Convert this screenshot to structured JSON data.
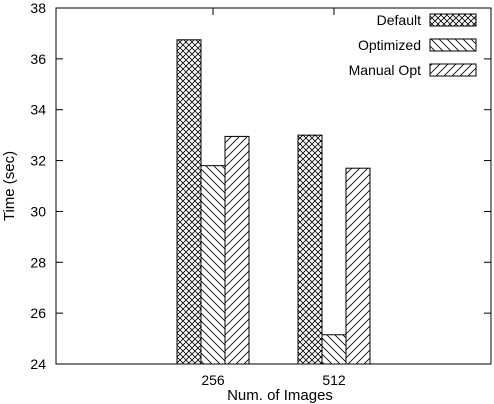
{
  "chart_data": {
    "type": "bar",
    "title": "",
    "xlabel": "Num. of Images",
    "ylabel": "Time (sec)",
    "categories": [
      "256",
      "512"
    ],
    "ylim": [
      24,
      38
    ],
    "yticks": [
      24,
      26,
      28,
      30,
      32,
      34,
      36,
      38
    ],
    "grid": false,
    "legend_position": "top-right",
    "series": [
      {
        "name": "Default",
        "values": [
          36.75,
          33.0
        ],
        "pattern": "crosshatch"
      },
      {
        "name": "Optimized",
        "values": [
          31.8,
          25.15
        ],
        "pattern": "backslash"
      },
      {
        "name": "Manual Opt",
        "values": [
          32.95,
          31.7
        ],
        "pattern": "slash"
      }
    ]
  }
}
